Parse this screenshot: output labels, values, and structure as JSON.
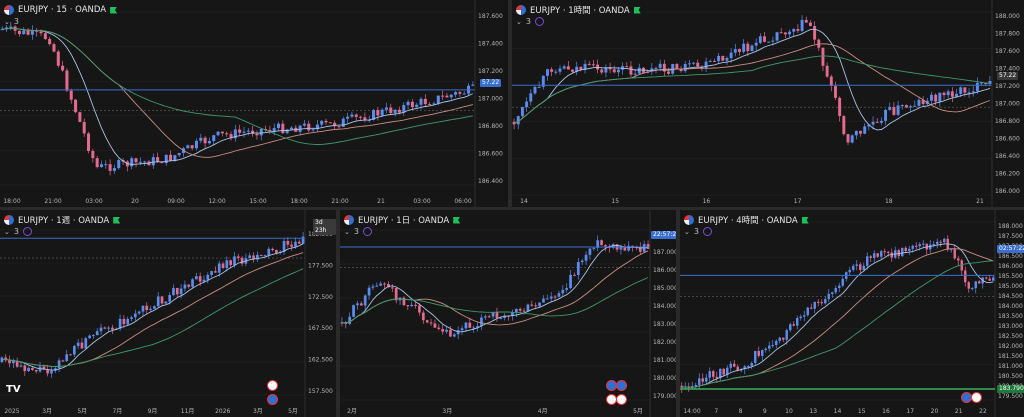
{
  "colors": {
    "up": "#5b8def",
    "down": "#e46a8f",
    "sma_fast": "#a9c4e8",
    "sma_mid": "#c98f7e",
    "sma_slow": "#3f9a6a",
    "hline": "#3a6fcf",
    "zigzag": "#9a9a9a",
    "bg": "#161616",
    "grid": "#262626"
  },
  "panes": [
    {
      "id": "p15",
      "title": "EURJPY · 15 · OANDA",
      "indicator_count": "3",
      "price_label": "57.22",
      "price_color": "#3a6fcf",
      "y_ticks": [
        "187.600",
        "187.400",
        "187.200",
        "187.000",
        "186.800",
        "186.600",
        "186.400"
      ],
      "x_ticks": [
        "18:00",
        "21:00",
        "03:00",
        "20",
        "09:00",
        "12:00",
        "15:00",
        "18:00",
        "21:00",
        "21",
        "03:00",
        "06:00"
      ]
    },
    {
      "id": "p1h",
      "title": "EURJPY · 1時間 · OANDA",
      "indicator_count": "3",
      "price_label": "57.22",
      "price_color": "#3a3a3a",
      "y_ticks": [
        "188.000",
        "187.800",
        "187.600",
        "187.400",
        "187.200",
        "187.000",
        "186.800",
        "186.600",
        "186.400",
        "186.200",
        "186.000"
      ],
      "x_ticks": [
        "14",
        "15",
        "16",
        "17",
        "18",
        "21"
      ]
    },
    {
      "id": "pW",
      "title": "EURJPY · 1週 · OANDA",
      "indicator_count": "3",
      "price_label": "3d 23h",
      "price_color": "#3a3a3a",
      "y_ticks": [
        "182.500",
        "177.500",
        "172.500",
        "167.500",
        "162.500",
        "157.500"
      ],
      "x_ticks": [
        "2025",
        "3月",
        "5月",
        "7月",
        "9月",
        "11月",
        "2026",
        "3月",
        "5月"
      ]
    },
    {
      "id": "pD",
      "title": "EURJPY · 1日 · OANDA",
      "indicator_count": "3",
      "price_label": "22:57:22",
      "price_color": "#3a6fcf",
      "y_ticks": [
        "188.000",
        "187.000",
        "186.000",
        "185.000",
        "184.000",
        "183.000",
        "182.000",
        "181.000",
        "180.000",
        "179.000"
      ],
      "x_ticks": [
        "2月",
        "3月",
        "4月",
        "5月"
      ]
    },
    {
      "id": "p4h",
      "title": "EURJPY · 4時間 · OANDA",
      "indicator_count": "3",
      "price_label": "02:57:22",
      "price_color": "#3a6fcf",
      "green_label": "183.790",
      "y_ticks": [
        "188.000",
        "187.500",
        "187.000",
        "186.500",
        "186.000",
        "185.500",
        "185.000",
        "184.500",
        "184.000",
        "183.500",
        "183.000",
        "182.500",
        "182.000",
        "181.500",
        "181.000",
        "180.500",
        "180.000",
        "179.500"
      ],
      "x_ticks": [
        "14:00",
        "7",
        "8",
        "9",
        "10",
        "13",
        "14",
        "15",
        "16",
        "17",
        "20",
        "21",
        "22"
      ]
    }
  ]
}
